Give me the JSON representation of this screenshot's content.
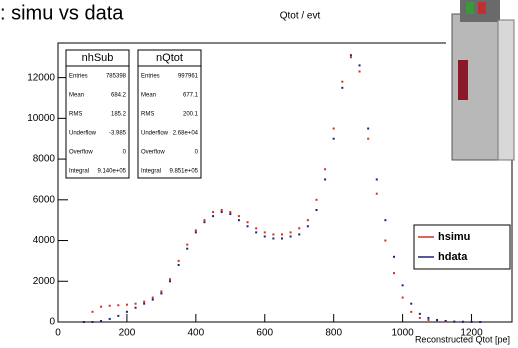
{
  "chart_data": {
    "type": "scatter",
    "page_title": ": simu vs data",
    "title": "Qtot / evt",
    "x_label": "Reconstructed Qtot [pe]",
    "x": [
      75,
      100,
      125,
      150,
      175,
      200,
      225,
      250,
      275,
      300,
      325,
      350,
      375,
      400,
      425,
      450,
      475,
      500,
      525,
      550,
      575,
      600,
      625,
      650,
      675,
      700,
      725,
      750,
      775,
      800,
      825,
      850,
      875,
      900,
      925,
      950,
      975,
      1000,
      1025,
      1050,
      1075,
      1100,
      1125,
      1150,
      1175,
      1200,
      1225
    ],
    "series": [
      {
        "name": "hsimu",
        "color": "#d03020",
        "values": [
          0,
          500,
          750,
          800,
          820,
          850,
          900,
          1000,
          1200,
          1500,
          2100,
          3000,
          3800,
          4500,
          5000,
          5400,
          5500,
          5400,
          5200,
          4900,
          4600,
          4400,
          4300,
          4300,
          4400,
          4600,
          5000,
          6000,
          7500,
          9500,
          11800,
          13000,
          12300,
          9000,
          6300,
          4000,
          2400,
          1200,
          500,
          200,
          100,
          50,
          20,
          10,
          5,
          0,
          0
        ]
      },
      {
        "name": "hdata",
        "color": "#202080",
        "values": [
          0,
          0,
          50,
          150,
          300,
          500,
          700,
          900,
          1100,
          1400,
          2000,
          2800,
          3600,
          4400,
          4900,
          5200,
          5400,
          5300,
          5000,
          4700,
          4400,
          4200,
          4100,
          4100,
          4200,
          4300,
          4700,
          5500,
          7000,
          9000,
          11500,
          13100,
          12600,
          9500,
          7000,
          5000,
          3200,
          1800,
          900,
          400,
          200,
          100,
          50,
          20,
          10,
          5,
          0
        ]
      }
    ],
    "xlim": [
      0,
      1300
    ],
    "xticks": [
      0,
      200,
      400,
      600,
      800,
      1000,
      1200
    ],
    "ylim": [
      0,
      13700
    ],
    "yticks": [
      0,
      2000,
      4000,
      6000,
      8000,
      10000,
      12000
    ],
    "legend": "right",
    "stat_boxes": [
      {
        "name": "nhSub",
        "rows": [
          [
            "Entries",
            "785398"
          ],
          [
            "Mean",
            "684.2"
          ],
          [
            "RMS",
            "185.2"
          ],
          [
            "Underflow",
            "-3.985"
          ],
          [
            "Overflow",
            "0"
          ],
          [
            "Integral",
            "9.140e+05"
          ]
        ]
      },
      {
        "name": "nQtot",
        "rows": [
          [
            "Entries",
            "997961"
          ],
          [
            "Mean",
            "677.1"
          ],
          [
            "RMS",
            "200.1"
          ],
          [
            "Underflow",
            "2.68e+04"
          ],
          [
            "Overflow",
            "0"
          ],
          [
            "Integral",
            "9.851e+05"
          ]
        ]
      }
    ]
  }
}
